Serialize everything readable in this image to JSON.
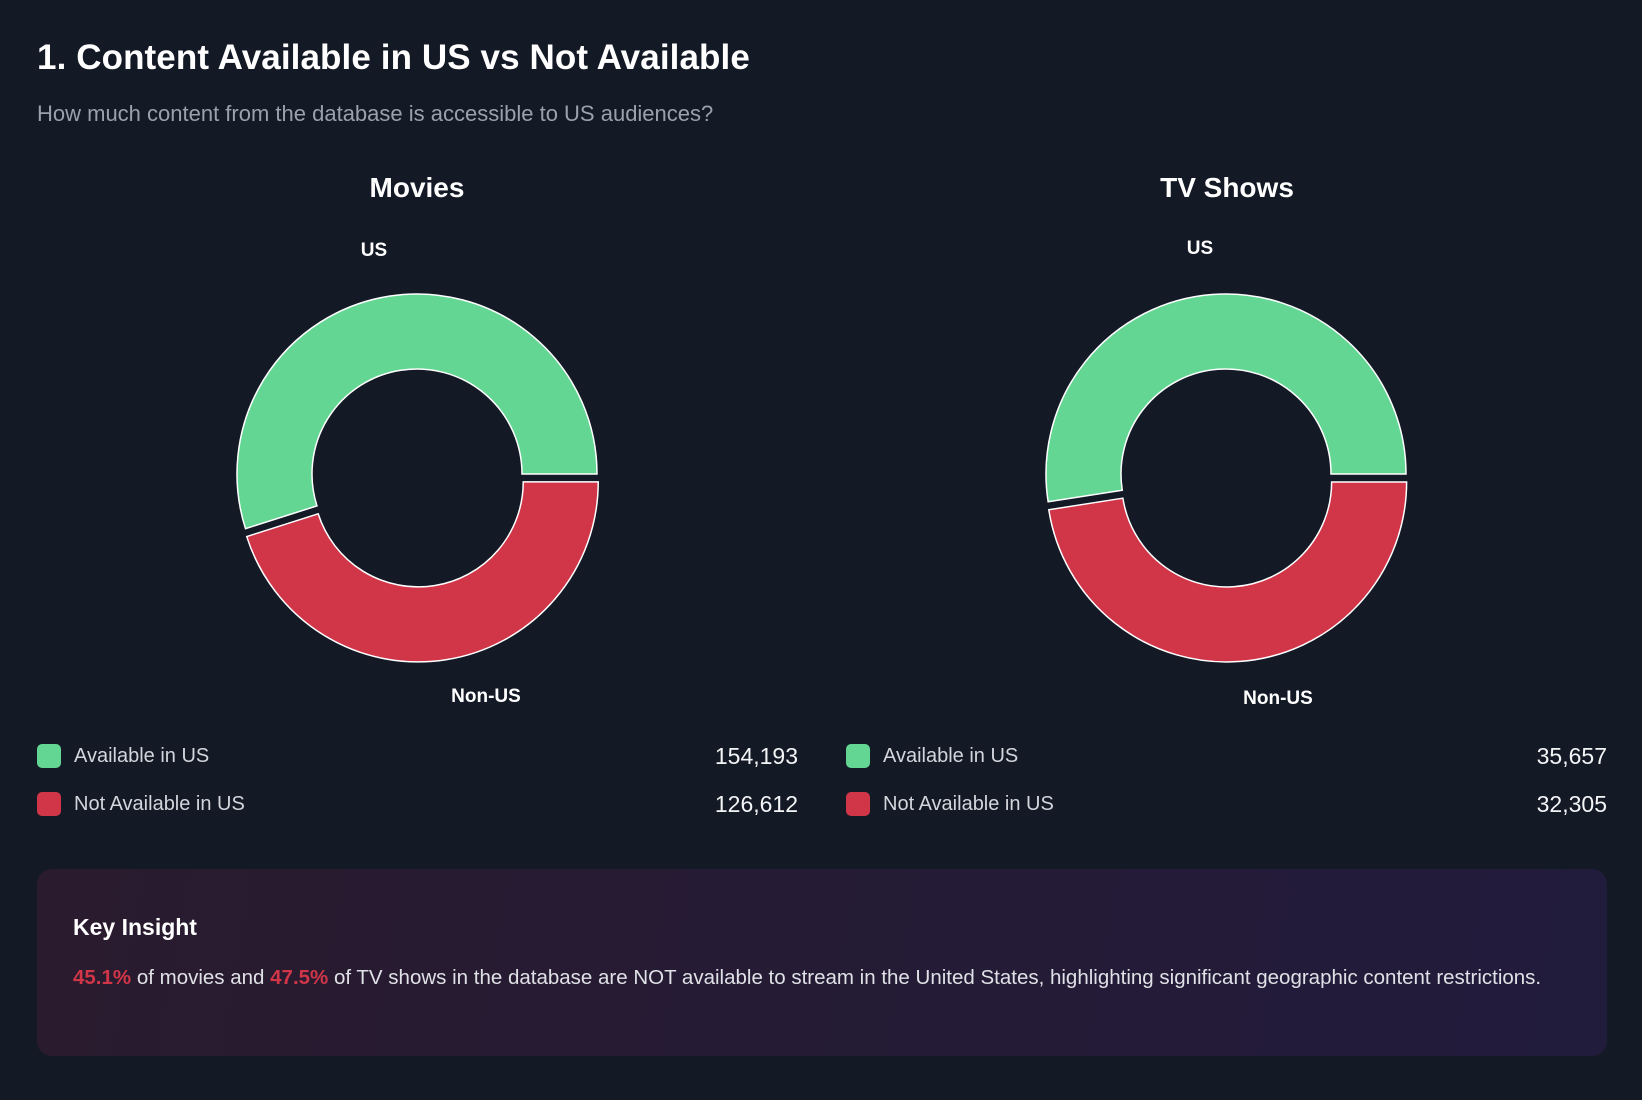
{
  "header": {
    "title": "1. Content Available in US vs Not Available",
    "subtitle": "How much content from the database is accessible to US audiences?"
  },
  "colors": {
    "background": "#131925",
    "available": "#63d693",
    "not_available": "#d03548",
    "highlight": "#d03548"
  },
  "charts": [
    {
      "title": "Movies",
      "slice_labels": {
        "us": "US",
        "non_us": "Non-US"
      },
      "legend": [
        {
          "label": "Available in US",
          "value": "154,193"
        },
        {
          "label": "Not Available in US",
          "value": "126,612"
        }
      ]
    },
    {
      "title": "TV Shows",
      "slice_labels": {
        "us": "US",
        "non_us": "Non-US"
      },
      "legend": [
        {
          "label": "Available in US",
          "value": "35,657"
        },
        {
          "label": "Not Available in US",
          "value": "32,305"
        }
      ]
    }
  ],
  "insight": {
    "title": "Key Insight",
    "movies_pct": "45.1%",
    "text_1": " of movies and ",
    "tv_pct": "47.5%",
    "text_2": " of TV shows in the database are NOT available to stream in the United States, highlighting significant geographic content restrictions."
  },
  "chart_data": [
    {
      "type": "pie",
      "title": "Movies",
      "hole": 0.58,
      "categories": [
        "US",
        "Non-US"
      ],
      "legend_labels": [
        "Available in US",
        "Not Available in US"
      ],
      "values": [
        154193,
        126612
      ],
      "colors": [
        "#63d693",
        "#d03548"
      ],
      "percent": [
        54.9,
        45.1
      ]
    },
    {
      "type": "pie",
      "title": "TV Shows",
      "hole": 0.58,
      "categories": [
        "US",
        "Non-US"
      ],
      "legend_labels": [
        "Available in US",
        "Not Available in US"
      ],
      "values": [
        35657,
        32305
      ],
      "colors": [
        "#63d693",
        "#d03548"
      ],
      "percent": [
        52.5,
        47.5
      ]
    }
  ]
}
